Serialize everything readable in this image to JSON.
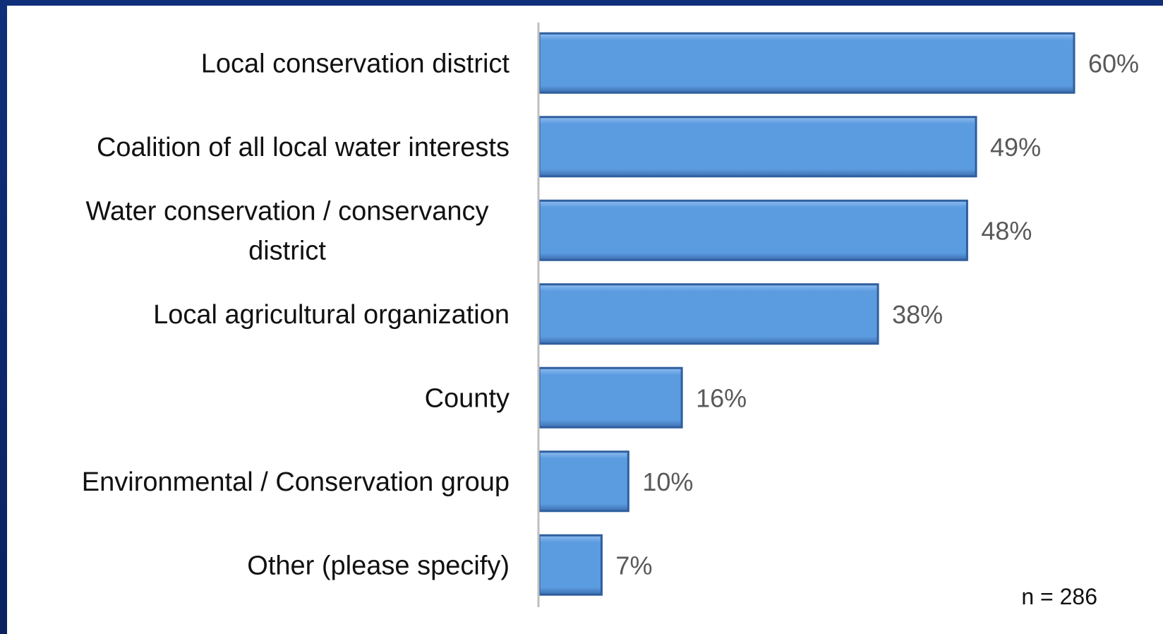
{
  "chart_data": {
    "type": "bar",
    "orientation": "horizontal",
    "categories": [
      "Local conservation district",
      "Coalition of all local water interests",
      "Water conservation / conservancy district",
      "Local agricultural organization",
      "County",
      "Environmental / Conservation group",
      "Other (please specify)"
    ],
    "category_lines": [
      [
        "Local conservation district"
      ],
      [
        "Coalition of all local water interests"
      ],
      [
        "Water conservation / conservancy",
        "district"
      ],
      [
        "Local agricultural organization"
      ],
      [
        "County"
      ],
      [
        "Environmental / Conservation group"
      ],
      [
        "Other (please specify)"
      ]
    ],
    "values": [
      60,
      49,
      48,
      38,
      16,
      10,
      7
    ],
    "value_labels": [
      "60%",
      "49%",
      "48%",
      "38%",
      "16%",
      "10%",
      "7%"
    ],
    "title": "",
    "xlabel": "",
    "ylabel": "",
    "xlim": [
      0,
      60
    ],
    "grid": false,
    "bar_color": "#5b9be0",
    "bar_edge_color": "#2f5f9e",
    "note": "n = 286"
  },
  "colors": {
    "background_frame": "#0f2f7a",
    "axis": "#bfbfbf"
  }
}
